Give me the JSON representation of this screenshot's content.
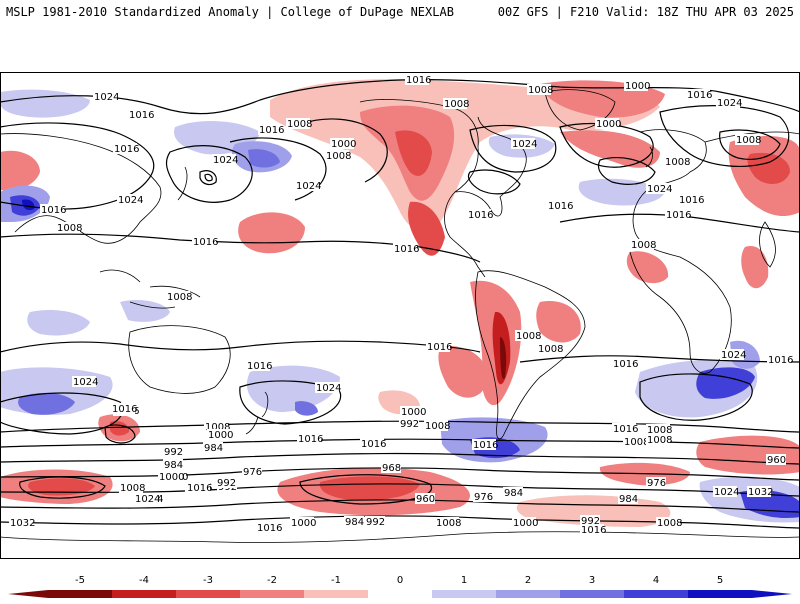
{
  "header": {
    "title_left": "MSLP 1981-2010 Standardized Anomaly | College of DuPage NEXLAB",
    "title_right": "00Z GFS | F210 Valid: 18Z THU APR 03 2025"
  },
  "colorbar": {
    "ticks": [
      "-5",
      "-4",
      "-3",
      "-2",
      "-1",
      "0",
      "1",
      "2",
      "3",
      "4",
      "5"
    ],
    "values": [
      -5,
      -4,
      -3,
      -2,
      -1,
      0,
      1,
      2,
      3,
      4,
      5
    ],
    "colors": {
      "-5": "#7a0a0a",
      "-4": "#c41e1e",
      "-3": "#e34a4a",
      "-2": "#f08080",
      "-1": "#f8c0b8",
      "0": "#ffffff",
      "1": "#c8c8f0",
      "2": "#a0a0ea",
      "3": "#7070e0",
      "4": "#4040d8",
      "5": "#1010c0"
    }
  },
  "contour_labels": [
    "1016",
    "1024",
    "1016",
    "1016",
    "1008",
    "1008",
    "1000",
    "1008",
    "1016",
    "1024",
    "1024",
    "1016",
    "1024",
    "1016",
    "1008",
    "1000",
    "1024",
    "1016",
    "1008",
    "1000",
    "1008",
    "1008",
    "1016",
    "1024",
    "1016",
    "1016",
    "1024",
    "1016",
    "1008",
    "1016",
    "1008",
    "1016",
    "1016",
    "1024",
    "1008",
    "1016",
    "1008",
    "1016",
    "1024",
    "1016",
    "1016",
    "1008",
    "1008",
    "1024",
    "1016",
    "1016",
    "1000",
    "992",
    "1008",
    "1016",
    "1000",
    "1008",
    "992",
    "984",
    "1016",
    "1024",
    "1016",
    "1008",
    "1000",
    "992",
    "984",
    "976",
    "968",
    "960",
    "976",
    "984",
    "984",
    "976",
    "960",
    "1000",
    "1016",
    "992",
    "1008",
    "1024",
    "1032",
    "1016",
    "1000",
    "984",
    "992",
    "1008",
    "1000",
    "992",
    "1016",
    "1008",
    "1032",
    "1024"
  ]
}
